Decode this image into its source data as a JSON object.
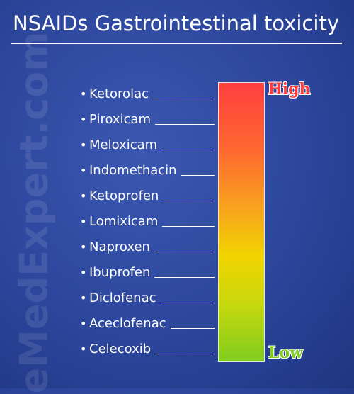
{
  "title": "NSAIDs Gastrointestinal toxicity",
  "watermark": "eMedExpert.com",
  "drugs": [
    "Ketorolac",
    "Piroxicam",
    "Meloxicam",
    "Indomethacin",
    "Ketoprofen",
    "Lomixicam",
    "Naproxen",
    "Ibuprofen",
    "Diclofenac",
    "Aceclofenac",
    "Celecoxib"
  ],
  "scale": {
    "high_label": "High",
    "low_label": "Low",
    "colors": {
      "high": "#ff3f3f",
      "mid": "#f2d400",
      "low": "#7fcc1e"
    }
  }
}
